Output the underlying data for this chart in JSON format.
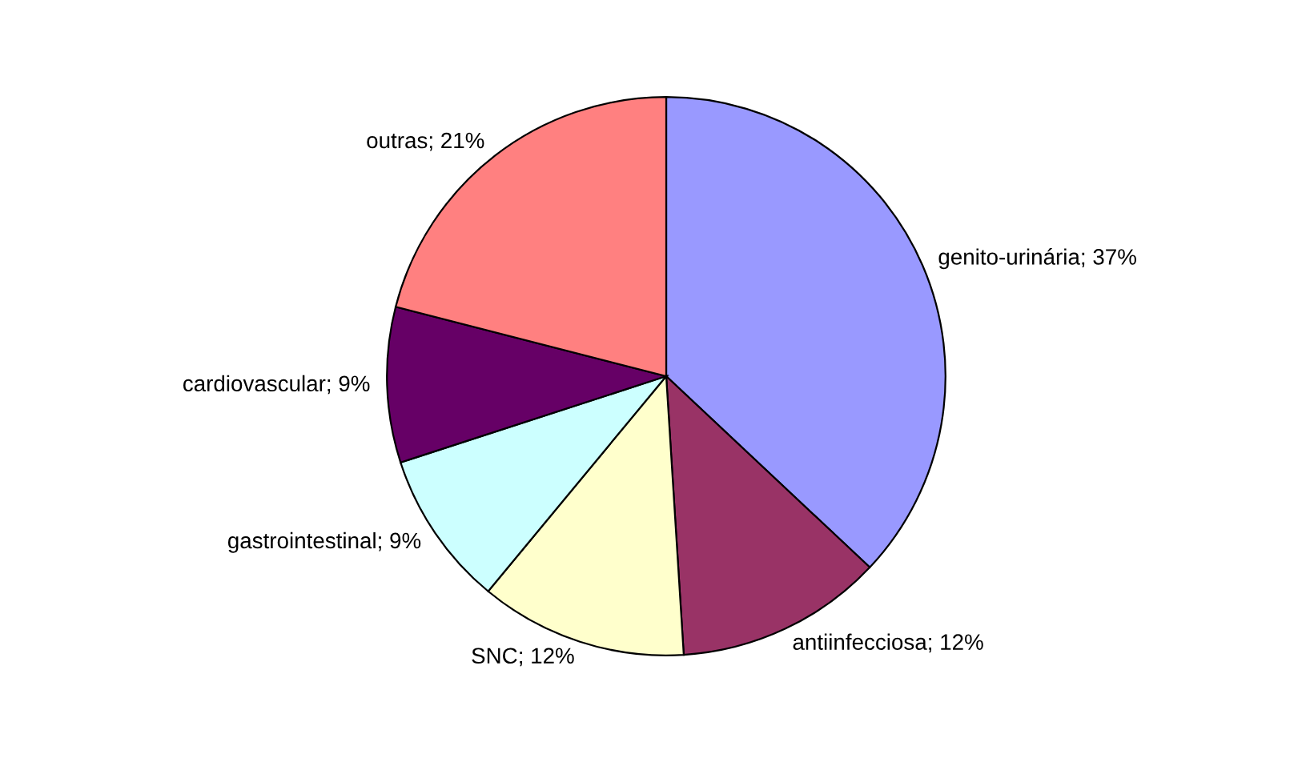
{
  "chart_data": {
    "type": "pie",
    "categories": [
      "genito-urinária",
      "antiinfecciosa",
      "SNC",
      "gastrointestinal",
      "cardiovascular",
      "outras"
    ],
    "values": [
      37,
      12,
      12,
      9,
      9,
      21
    ],
    "value_labels": [
      "37%",
      "12%",
      "12%",
      "9%",
      "9%",
      "21%"
    ],
    "colors": [
      "#9999ff",
      "#993366",
      "#ffffcc",
      "#ccffff",
      "#660066",
      "#ff8080"
    ],
    "legend": false
  }
}
